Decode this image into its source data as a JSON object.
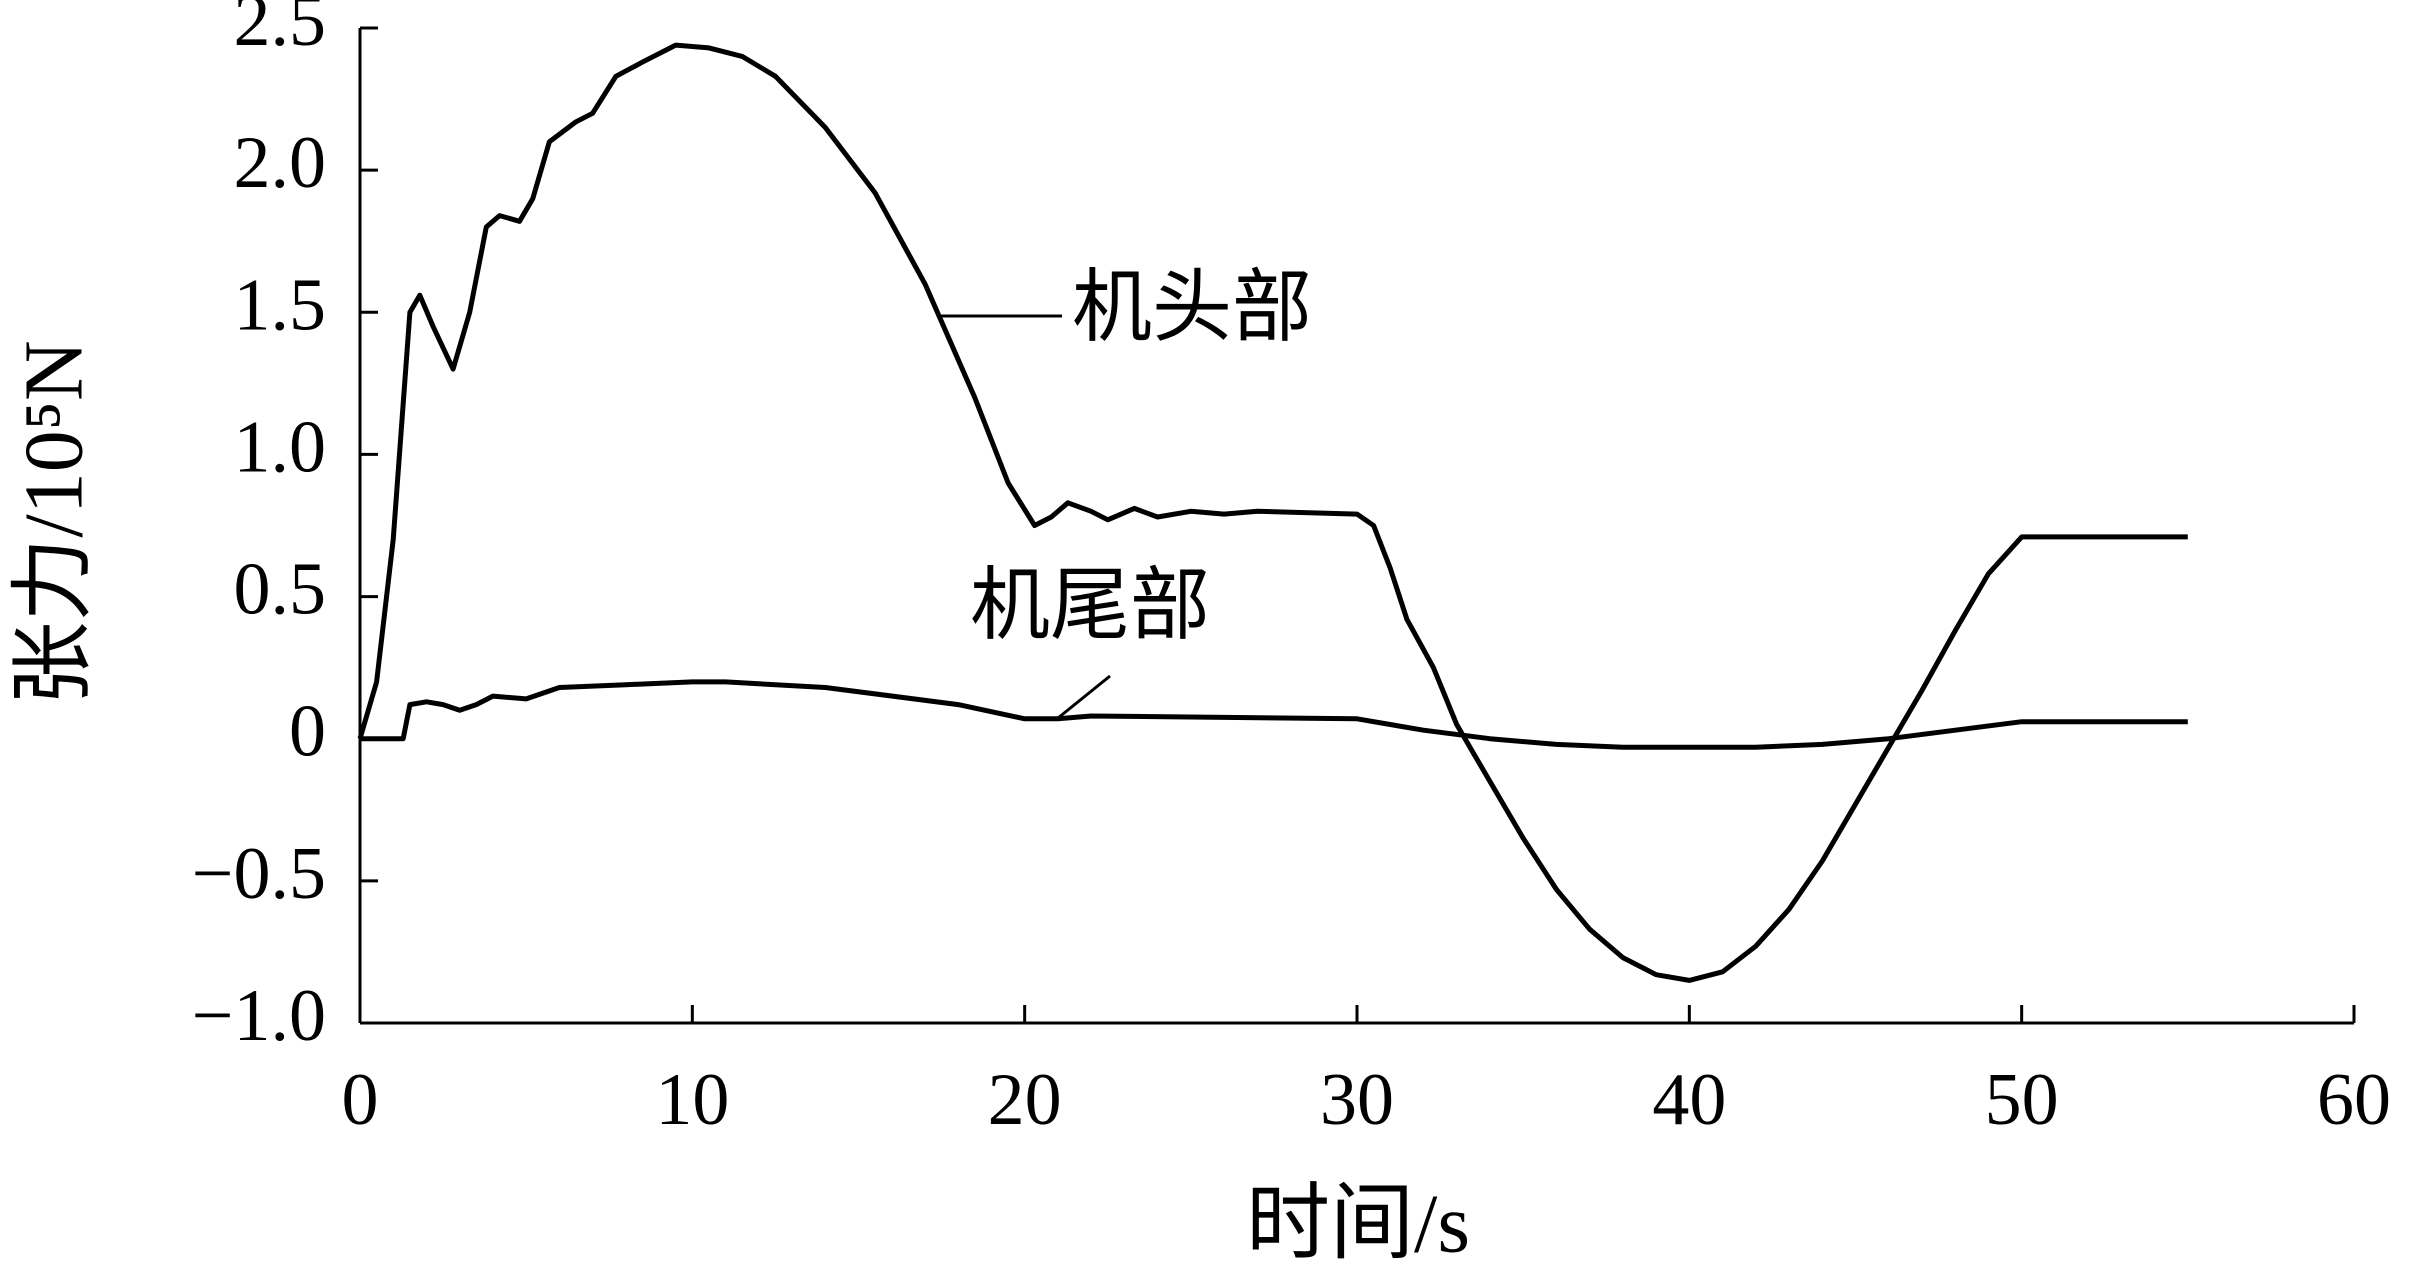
{
  "chart_data": {
    "type": "line",
    "x_label": "时间/s",
    "y_label": "张力/10⁵N",
    "xlim": [
      0,
      60
    ],
    "xticks": [
      0,
      10,
      20,
      30,
      40,
      50,
      60
    ],
    "ylim": [
      -1.0,
      2.5
    ],
    "yticks": [
      {
        "value": -1.0,
        "label": "−1.0"
      },
      {
        "value": -0.5,
        "label": "−0.5"
      },
      0,
      0.5,
      {
        "value": 1.0,
        "label": "1.0"
      },
      1.5,
      {
        "value": 2.0,
        "label": "2.0"
      },
      2.5
    ],
    "grid": false,
    "series": [
      {
        "name": "机头部",
        "color": "#000000",
        "x": [
          0,
          0.5,
          1,
          1.5,
          1.8,
          2.2,
          2.8,
          3.3,
          3.8,
          4.2,
          4.8,
          5.2,
          5.7,
          6.5,
          7,
          7.7,
          8.5,
          9.5,
          10.5,
          11.5,
          12.5,
          14,
          15.5,
          17,
          18.5,
          19.5,
          20.3,
          20.8,
          21.3,
          22,
          22.5,
          23.3,
          24,
          25,
          26,
          27,
          30,
          30.5,
          31,
          31.5,
          32.3,
          33,
          34,
          35,
          36,
          37,
          38,
          39,
          40,
          41,
          42,
          43,
          44,
          45,
          46,
          47,
          48,
          49,
          50,
          55
        ],
        "values": [
          0,
          0.2,
          0.7,
          1.5,
          1.56,
          1.45,
          1.3,
          1.5,
          1.8,
          1.84,
          1.82,
          1.9,
          2.1,
          2.17,
          2.2,
          2.33,
          2.38,
          2.44,
          2.43,
          2.4,
          2.33,
          2.15,
          1.92,
          1.6,
          1.2,
          0.9,
          0.75,
          0.78,
          0.83,
          0.8,
          0.77,
          0.81,
          0.78,
          0.8,
          0.79,
          0.8,
          0.79,
          0.75,
          0.6,
          0.42,
          0.25,
          0.05,
          -0.15,
          -0.35,
          -0.53,
          -0.67,
          -0.77,
          -0.83,
          -0.85,
          -0.82,
          -0.73,
          -0.6,
          -0.43,
          -0.23,
          -0.03,
          0.17,
          0.38,
          0.58,
          0.71,
          0.71
        ]
      },
      {
        "name": "机尾部",
        "color": "#000000",
        "x": [
          0,
          1.3,
          1.5,
          2,
          2.5,
          3,
          3.5,
          4,
          5,
          6,
          8,
          10,
          11,
          14,
          18,
          20,
          21,
          22,
          30,
          31,
          32,
          34,
          36,
          38,
          40,
          42,
          44,
          46,
          48,
          50,
          55
        ],
        "values": [
          0,
          0,
          0.12,
          0.13,
          0.12,
          0.1,
          0.12,
          0.15,
          0.14,
          0.18,
          0.19,
          0.2,
          0.2,
          0.18,
          0.12,
          0.07,
          0.07,
          0.08,
          0.07,
          0.05,
          0.03,
          0.0,
          -0.02,
          -0.03,
          -0.03,
          -0.03,
          -0.02,
          0.0,
          0.03,
          0.06,
          0.06
        ]
      }
    ]
  }
}
